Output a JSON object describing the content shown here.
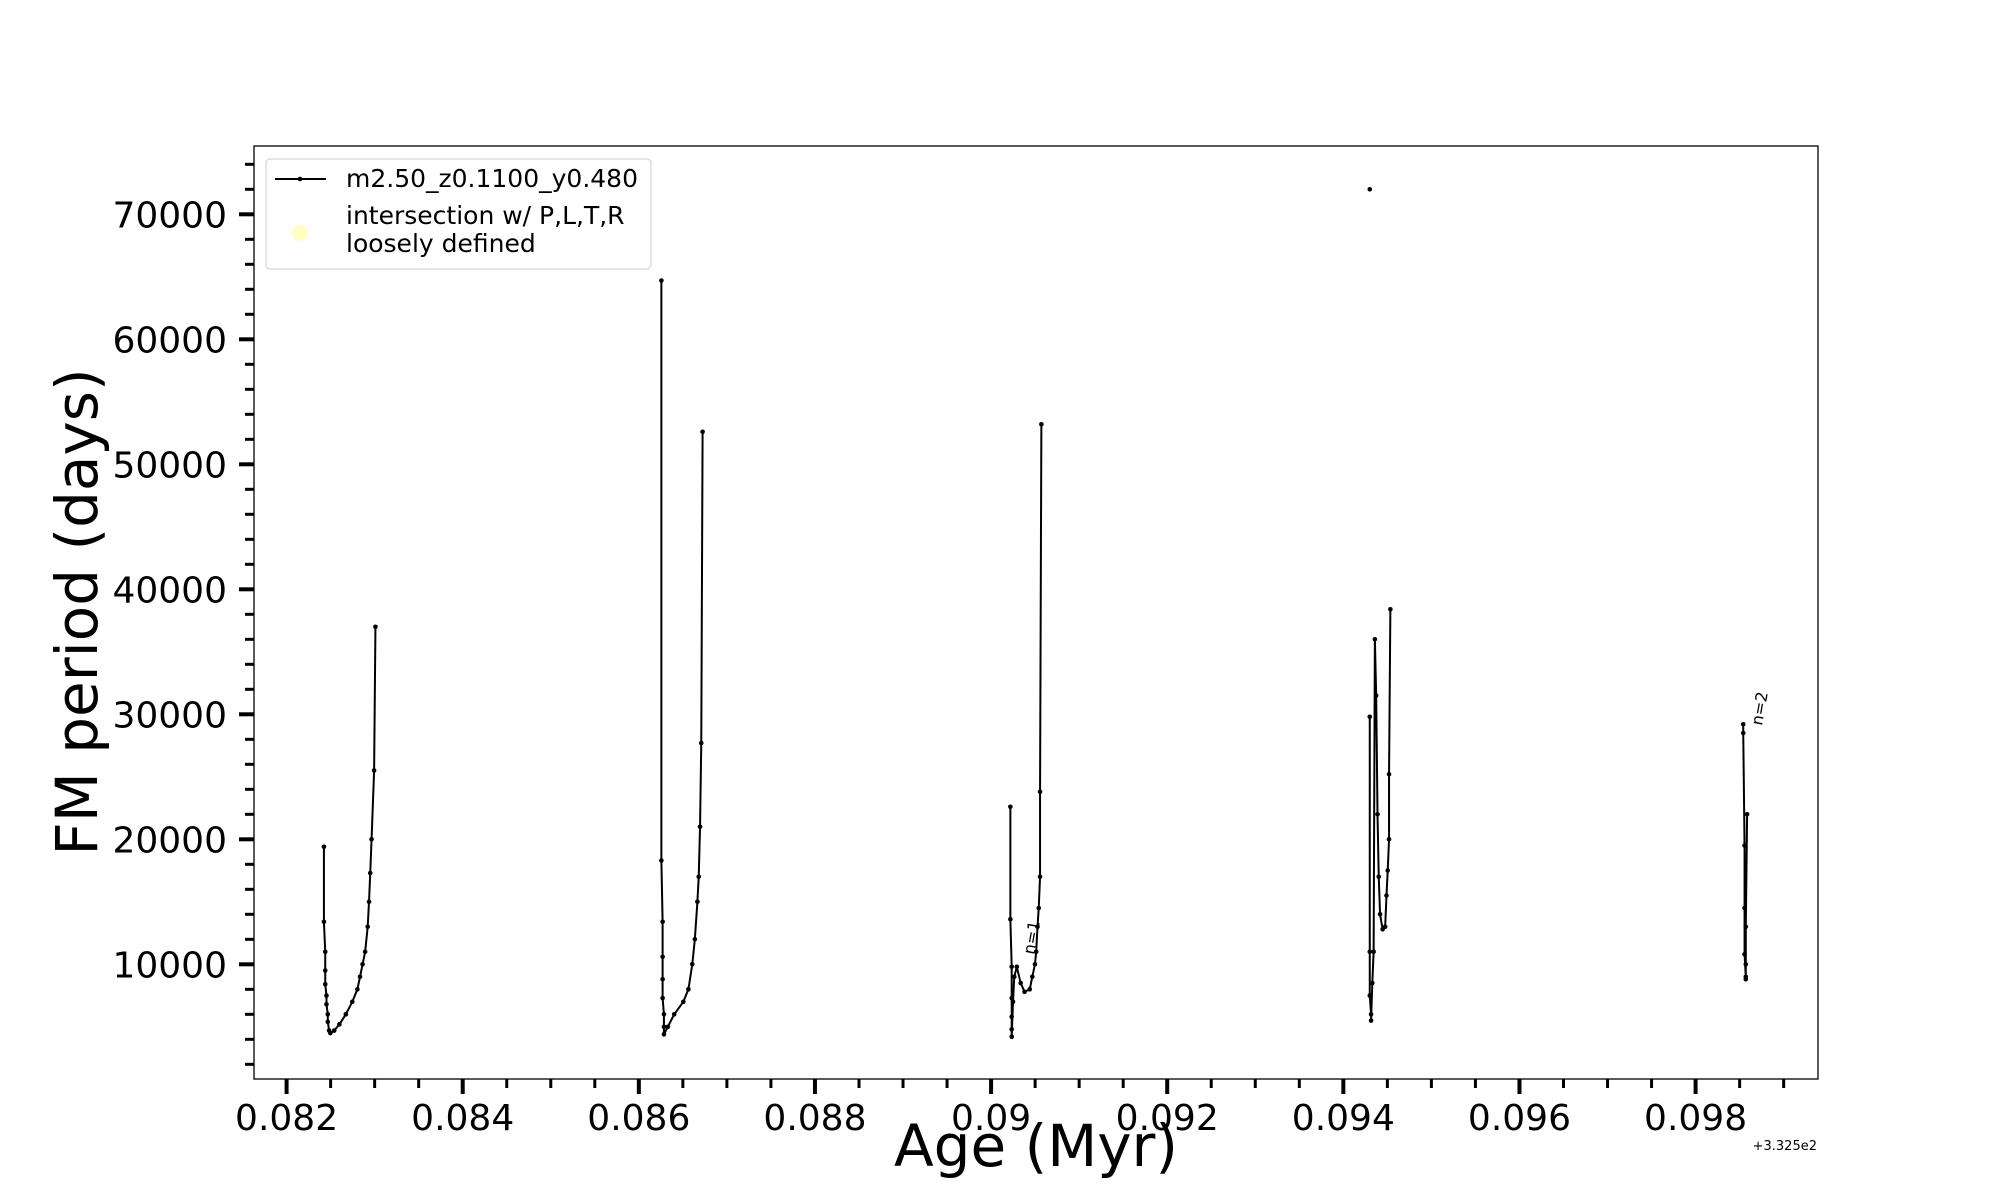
{
  "chart_data": {
    "type": "line",
    "xlabel": "Age (Myr)",
    "ylabel": "FM period (days)",
    "x_offset_label": "+3.325e2",
    "annotations": [
      "n=1",
      "n=2"
    ],
    "xlim": [
      0.08163,
      0.09939
    ],
    "ylim": [
      825,
      75464
    ],
    "xticks": [
      0.082,
      0.084,
      0.086,
      0.088,
      0.09,
      {
        "value": 0.092,
        "label": "0.092"
      },
      0.094,
      0.096,
      0.098
    ],
    "yticks": [
      10000,
      20000,
      30000,
      40000,
      50000,
      60000,
      70000
    ],
    "xminorticks": [
      0.0825,
      0.083,
      0.0835,
      0.0845,
      0.085,
      0.0855,
      0.0865,
      0.087,
      0.0875,
      0.0885,
      0.089,
      0.0895,
      0.0905,
      0.091,
      0.0915,
      0.0925,
      0.093,
      0.0935,
      0.0945,
      0.095,
      0.0955,
      0.0965,
      0.097,
      0.0975,
      0.0985,
      0.099
    ],
    "yminorticks": [
      2000,
      4000,
      6000,
      8000,
      12000,
      14000,
      16000,
      18000,
      22000,
      24000,
      26000,
      28000,
      32000,
      34000,
      36000,
      38000,
      42000,
      44000,
      46000,
      48000,
      52000,
      54000,
      56000,
      58000,
      62000,
      64000,
      66000,
      68000,
      72000,
      74000
    ],
    "legend": "upper left",
    "series": [
      {
        "name": "m2.50_z0.1100_y0.480",
        "color": "#000000",
        "x": [
          0.082424,
          0.082424,
          0.082439,
          0.082439,
          0.082439,
          0.082453,
          0.082453,
          0.082468,
          0.082468,
          0.082483,
          0.082497,
          0.082541,
          0.0826,
          0.082673,
          0.082746,
          0.082804,
          0.082834,
          0.082863,
          0.082892,
          0.082921,
          0.082936,
          0.08295,
          0.082965,
          0.082994,
          0.083009,
          null,
          0.086256,
          0.086256,
          0.08627,
          0.08627,
          0.08627,
          0.08627,
          0.086285,
          0.086285,
          0.086285,
          0.086329,
          0.086402,
          0.086505,
          0.086563,
          0.086607,
          0.086636,
          0.086665,
          0.08668,
          0.086695,
          0.086709,
          0.086724,
          null,
          0.090219,
          0.090219,
          0.090234,
          0.090234,
          0.090234,
          0.090234,
          0.090234,
          0.090249,
          0.090263,
          0.090292,
          0.090336,
          0.09038,
          0.090439,
          0.090468,
          0.090498,
          0.090512,
          0.090527,
          0.090541,
          0.090556,
          0.090556,
          0.090571,
          null,
          0.0943,
          null,
          0.0943,
          0.0943,
          0.0943,
          0.094315,
          0.094315,
          0.094329,
          0.094344,
          0.094358,
          0.094373,
          0.094388,
          0.094402,
          0.094417,
          0.094446,
          0.094475,
          0.09449,
          0.094504,
          0.094519,
          0.094519,
          0.094534,
          null,
          0.098541,
          0.098541,
          0.098556,
          0.098556,
          0.098556,
          0.09857,
          0.09857,
          0.09857,
          0.09857,
          0.098585
        ],
        "values": [
          19400,
          13400,
          11000,
          9500,
          8400,
          7500,
          6800,
          6000,
          5400,
          4700,
          4500,
          4700,
          5200,
          6000,
          7000,
          8000,
          9000,
          10000,
          11000,
          13000,
          15000,
          17300,
          20000,
          25500,
          37000,
          null,
          64700,
          18300,
          13400,
          10600,
          8800,
          7300,
          6000,
          5000,
          4400,
          5000,
          6000,
          7000,
          8000,
          10000,
          12000,
          15000,
          17000,
          21000,
          27700,
          52600,
          null,
          22600,
          13600,
          9800,
          7300,
          5800,
          4800,
          4200,
          7000,
          9000,
          9800,
          8500,
          7800,
          8000,
          9000,
          10000,
          11000,
          13000,
          14500,
          17000,
          23800,
          53200,
          null,
          72000,
          null,
          29800,
          11000,
          7500,
          6000,
          5500,
          8500,
          11000,
          36000,
          31500,
          22000,
          17000,
          14000,
          12800,
          13000,
          15500,
          17500,
          20000,
          25200,
          38400,
          null,
          29200,
          28500,
          19500,
          14500,
          10800,
          9000,
          8800,
          10000,
          13000,
          22000
        ]
      },
      {
        "name": "intersection w/ P,L,T,R\nloosely defined",
        "color": "#ffff99",
        "x": [],
        "values": []
      }
    ]
  }
}
